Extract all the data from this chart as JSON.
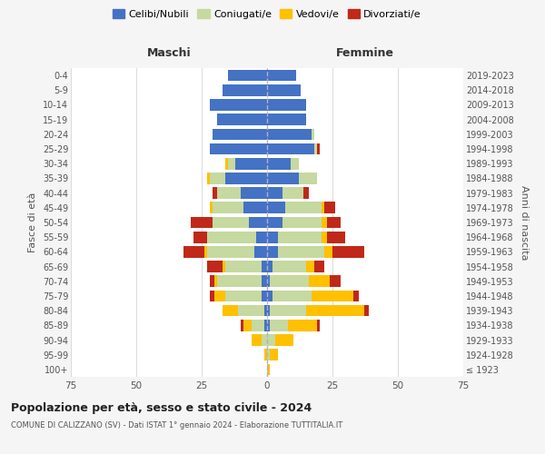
{
  "age_groups": [
    "100+",
    "95-99",
    "90-94",
    "85-89",
    "80-84",
    "75-79",
    "70-74",
    "65-69",
    "60-64",
    "55-59",
    "50-54",
    "45-49",
    "40-44",
    "35-39",
    "30-34",
    "25-29",
    "20-24",
    "15-19",
    "10-14",
    "5-9",
    "0-4"
  ],
  "birth_years": [
    "≤ 1923",
    "1924-1928",
    "1929-1933",
    "1934-1938",
    "1939-1943",
    "1944-1948",
    "1949-1953",
    "1954-1958",
    "1959-1963",
    "1964-1968",
    "1969-1973",
    "1974-1978",
    "1979-1983",
    "1984-1988",
    "1989-1993",
    "1994-1998",
    "1999-2003",
    "2004-2008",
    "2009-2013",
    "2014-2018",
    "2019-2023"
  ],
  "maschi": {
    "celibi": [
      0,
      0,
      0,
      1,
      1,
      2,
      2,
      2,
      5,
      4,
      7,
      9,
      10,
      16,
      12,
      22,
      21,
      19,
      22,
      17,
      15
    ],
    "coniugati": [
      0,
      0,
      2,
      5,
      10,
      14,
      17,
      14,
      18,
      19,
      14,
      12,
      9,
      6,
      3,
      0,
      0,
      0,
      0,
      0,
      0
    ],
    "vedovi": [
      0,
      1,
      4,
      3,
      6,
      4,
      1,
      1,
      1,
      0,
      0,
      1,
      0,
      1,
      1,
      0,
      0,
      0,
      0,
      0,
      0
    ],
    "divorziati": [
      0,
      0,
      0,
      1,
      0,
      2,
      2,
      6,
      8,
      5,
      8,
      0,
      2,
      0,
      0,
      0,
      0,
      0,
      0,
      0,
      0
    ]
  },
  "femmine": {
    "nubili": [
      0,
      0,
      0,
      1,
      1,
      2,
      1,
      2,
      4,
      4,
      6,
      7,
      6,
      12,
      9,
      18,
      17,
      15,
      15,
      13,
      11
    ],
    "coniugate": [
      0,
      1,
      3,
      7,
      14,
      15,
      15,
      13,
      18,
      17,
      15,
      14,
      8,
      7,
      3,
      1,
      1,
      0,
      0,
      0,
      0
    ],
    "vedove": [
      1,
      3,
      7,
      11,
      22,
      16,
      8,
      3,
      3,
      2,
      2,
      1,
      0,
      0,
      0,
      0,
      0,
      0,
      0,
      0,
      0
    ],
    "divorziate": [
      0,
      0,
      0,
      1,
      2,
      2,
      4,
      4,
      12,
      7,
      5,
      4,
      2,
      0,
      0,
      1,
      0,
      0,
      0,
      0,
      0
    ]
  },
  "colors": {
    "celibi": "#4472c4",
    "coniugati": "#c5d9a0",
    "vedovi": "#ffc000",
    "divorziati": "#c0281a"
  },
  "legend_labels": [
    "Celibi/Nubili",
    "Coniugati/e",
    "Vedovi/e",
    "Divorziati/e"
  ],
  "title": "Popolazione per età, sesso e stato civile - 2024",
  "subtitle": "COMUNE DI CALIZZANO (SV) - Dati ISTAT 1° gennaio 2024 - Elaborazione TUTTITALIA.IT",
  "xlabel_left": "Maschi",
  "xlabel_right": "Femmine",
  "ylabel_left": "Fasce di età",
  "ylabel_right": "Anni di nascita",
  "xlim": 75,
  "bg_color": "#f5f5f5",
  "plot_bg": "#ffffff"
}
